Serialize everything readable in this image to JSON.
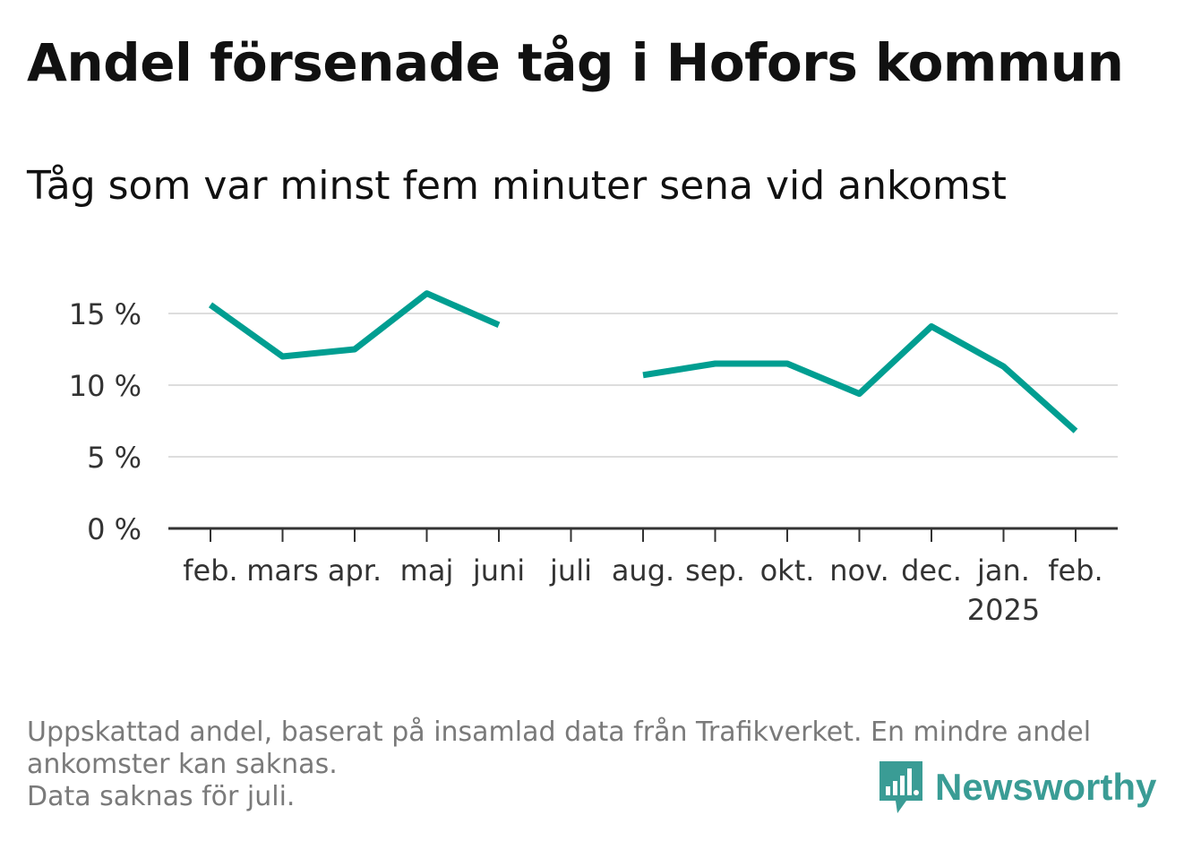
{
  "title": "Andel försenade tåg i Hofors kommun",
  "subtitle": "Tåg som var minst fem minuter sena vid ankomst",
  "footer": {
    "line1": "Uppskattad andel, baserat på insamlad data från Trafikverket. En mindre andel",
    "line2": "ankomster kan saknas.",
    "line3": "Data saknas för juli."
  },
  "brand": {
    "name": "Newsworthy",
    "icon": "newsworthy-logo-icon",
    "color": "#3a9c95"
  },
  "chart_data": {
    "type": "line",
    "categories": [
      "feb.",
      "mars",
      "apr.",
      "maj",
      "juni",
      "juli",
      "aug.",
      "sep.",
      "okt.",
      "nov.",
      "dec.",
      "jan.",
      "feb."
    ],
    "year_labels": [
      "",
      "",
      "",
      "",
      "",
      "",
      "",
      "",
      "",
      "",
      "",
      "2025",
      ""
    ],
    "series": [
      {
        "values": [
          15.6,
          12.0,
          12.5,
          16.4,
          14.2,
          null,
          10.7,
          11.5,
          11.5,
          9.4,
          14.1,
          11.3,
          6.8
        ],
        "color": "#009e91"
      }
    ],
    "yticks": [
      0,
      5,
      10,
      15
    ],
    "ytick_labels": [
      "0 %",
      "5 %",
      "10 %",
      "15 %"
    ],
    "ylim": [
      0,
      17
    ],
    "grid": true,
    "colors": {
      "line": "#009e91",
      "grid": "#dddddd",
      "axis": "#333333",
      "text": "#333333"
    }
  }
}
